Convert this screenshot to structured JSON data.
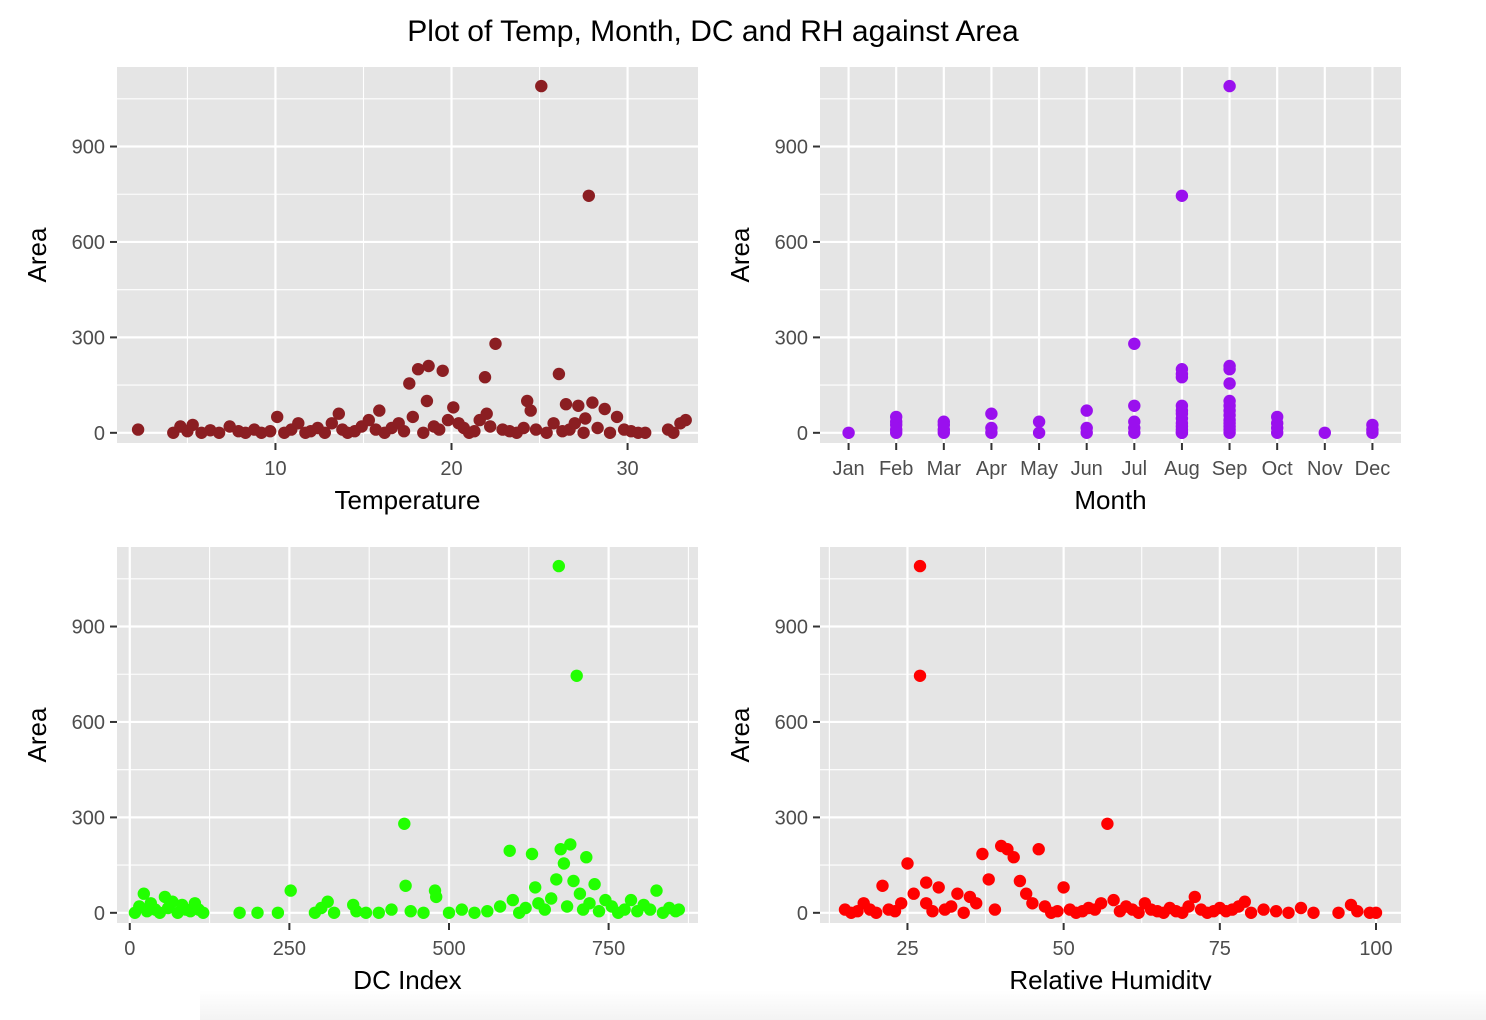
{
  "title": "Plot of Temp, Month, DC and RH against Area",
  "chart_data": [
    {
      "type": "scatter",
      "title": "",
      "xlabel": "Temperature",
      "ylabel": "Area",
      "xlim": [
        1,
        34
      ],
      "ylim": [
        -32,
        1150
      ],
      "x_ticks": [
        10,
        20,
        30
      ],
      "x_tick_labels": [
        "10",
        "20",
        "30"
      ],
      "y_ticks": [
        0,
        300,
        600,
        900
      ],
      "y_tick_labels": [
        "0",
        "300",
        "600",
        "900"
      ],
      "grid": true,
      "color": "#8b1e22",
      "series": [
        {
          "x": [
            2.2,
            4.2,
            4.6,
            5.0,
            5.3,
            5.8,
            6.3,
            6.8,
            7.4,
            7.9,
            8.3,
            8.8,
            9.2,
            9.7,
            10.1,
            10.5,
            10.9,
            11.3,
            11.7,
            12.0,
            12.4,
            12.8,
            13.2,
            13.6,
            13.8,
            14.1,
            14.5,
            14.9,
            15.3,
            15.7,
            15.9,
            16.2,
            16.6,
            17.0,
            17.3,
            17.6,
            17.8,
            18.1,
            18.4,
            18.6,
            18.7,
            19.0,
            19.3,
            19.5,
            19.8,
            20.1,
            20.4,
            20.7,
            21.0,
            21.3,
            21.6,
            21.9,
            22.0,
            22.2,
            22.5,
            22.9,
            23.3,
            23.7,
            24.1,
            24.3,
            24.5,
            24.8,
            25.1,
            25.4,
            25.8,
            26.1,
            26.3,
            26.5,
            26.7,
            27.0,
            27.2,
            27.5,
            27.6,
            27.8,
            28.0,
            28.3,
            28.7,
            29.0,
            29.4,
            29.8,
            30.2,
            30.6,
            31.0,
            32.3,
            32.6,
            33.0,
            33.3
          ],
          "y": [
            10,
            0,
            20,
            5,
            25,
            0,
            8,
            0,
            20,
            5,
            0,
            10,
            0,
            5,
            50,
            0,
            10,
            30,
            0,
            5,
            15,
            0,
            30,
            60,
            10,
            0,
            5,
            20,
            40,
            10,
            70,
            0,
            15,
            30,
            5,
            155,
            50,
            200,
            0,
            100,
            210,
            20,
            10,
            195,
            40,
            80,
            30,
            15,
            0,
            5,
            40,
            175,
            60,
            20,
            280,
            10,
            5,
            0,
            15,
            100,
            70,
            10,
            1090,
            0,
            30,
            185,
            5,
            90,
            10,
            30,
            85,
            0,
            45,
            745,
            95,
            15,
            75,
            0,
            50,
            10,
            5,
            0,
            0,
            10,
            0,
            30,
            40
          ]
        }
      ]
    },
    {
      "type": "scatter",
      "title": "",
      "xlabel": "Month",
      "ylabel": "Area",
      "xlim": [
        0.4,
        12.6
      ],
      "ylim": [
        -32,
        1150
      ],
      "categories": [
        "Jan",
        "Feb",
        "Mar",
        "Apr",
        "May",
        "Jun",
        "Jul",
        "Aug",
        "Sep",
        "Oct",
        "Nov",
        "Dec"
      ],
      "y_ticks": [
        0,
        300,
        600,
        900
      ],
      "y_tick_labels": [
        "0",
        "300",
        "600",
        "900"
      ],
      "grid": true,
      "color": "#9a10ee",
      "series": [
        {
          "x": [
            1,
            2,
            2,
            2,
            2,
            2,
            3,
            3,
            3,
            3,
            4,
            4,
            4,
            5,
            5,
            6,
            6,
            6,
            7,
            7,
            7,
            7,
            7,
            8,
            8,
            8,
            8,
            8,
            8,
            8,
            8,
            8,
            8,
            8,
            8,
            8,
            9,
            9,
            9,
            9,
            9,
            9,
            9,
            9,
            9,
            9,
            9,
            9,
            9,
            10,
            10,
            10,
            10,
            11,
            12,
            12,
            12
          ],
          "y": [
            0,
            0,
            10,
            25,
            35,
            50,
            0,
            10,
            25,
            35,
            0,
            15,
            60,
            0,
            35,
            0,
            15,
            70,
            0,
            15,
            35,
            85,
            280,
            0,
            10,
            20,
            30,
            45,
            60,
            70,
            85,
            175,
            185,
            200,
            745,
            0,
            0,
            10,
            20,
            30,
            40,
            55,
            70,
            85,
            100,
            155,
            200,
            210,
            1090,
            0,
            15,
            30,
            50,
            0,
            0,
            10,
            25
          ]
        }
      ]
    },
    {
      "type": "scatter",
      "title": "",
      "xlabel": "DC Index",
      "ylabel": "Area",
      "xlim": [
        -20,
        890
      ],
      "ylim": [
        -32,
        1150
      ],
      "x_ticks": [
        0,
        250,
        500,
        750
      ],
      "x_tick_labels": [
        "0",
        "250",
        "500",
        "750"
      ],
      "y_ticks": [
        0,
        300,
        600,
        900
      ],
      "y_tick_labels": [
        "0",
        "300",
        "600",
        "900"
      ],
      "grid": true,
      "color": "#22ff00",
      "series": [
        {
          "x": [
            8,
            15,
            22,
            27,
            33,
            40,
            47,
            55,
            60,
            67,
            75,
            82,
            88,
            95,
            102,
            108,
            115,
            172,
            200,
            232,
            252,
            290,
            300,
            310,
            320,
            350,
            355,
            370,
            390,
            410,
            430,
            432,
            440,
            460,
            478,
            480,
            500,
            520,
            540,
            560,
            580,
            595,
            600,
            610,
            620,
            630,
            635,
            640,
            650,
            660,
            668,
            672,
            675,
            680,
            685,
            690,
            695,
            700,
            705,
            710,
            715,
            720,
            728,
            735,
            745,
            755,
            765,
            775,
            785,
            795,
            805,
            815,
            825,
            835,
            845,
            855,
            860
          ],
          "y": [
            0,
            20,
            60,
            5,
            30,
            10,
            0,
            50,
            15,
            35,
            0,
            25,
            10,
            5,
            30,
            10,
            0,
            0,
            0,
            0,
            70,
            0,
            15,
            35,
            0,
            25,
            5,
            0,
            0,
            10,
            280,
            85,
            5,
            0,
            70,
            50,
            0,
            10,
            0,
            5,
            20,
            195,
            40,
            0,
            15,
            185,
            80,
            30,
            10,
            45,
            105,
            1090,
            200,
            155,
            20,
            215,
            100,
            745,
            60,
            10,
            175,
            30,
            90,
            5,
            40,
            20,
            0,
            10,
            40,
            5,
            25,
            10,
            70,
            0,
            15,
            5,
            10
          ]
        }
      ]
    },
    {
      "type": "scatter",
      "title": "",
      "xlabel": "Relative Humidity",
      "ylabel": "Area",
      "xlim": [
        11,
        104
      ],
      "ylim": [
        -32,
        1150
      ],
      "x_ticks": [
        25,
        50,
        75,
        100
      ],
      "x_tick_labels": [
        "25",
        "50",
        "75",
        "100"
      ],
      "y_ticks": [
        0,
        300,
        600,
        900
      ],
      "y_tick_labels": [
        "0",
        "300",
        "600",
        "900"
      ],
      "grid": true,
      "color": "#ff0000",
      "series": [
        {
          "x": [
            15,
            16,
            17,
            18,
            19,
            20,
            21,
            22,
            23,
            24,
            25,
            26,
            27,
            27,
            28,
            28,
            29,
            30,
            31,
            32,
            33,
            34,
            35,
            36,
            37,
            38,
            39,
            40,
            41,
            42,
            43,
            44,
            45,
            46,
            47,
            48,
            49,
            50,
            51,
            52,
            53,
            54,
            55,
            56,
            57,
            58,
            59,
            60,
            61,
            62,
            63,
            64,
            65,
            66,
            67,
            68,
            69,
            70,
            71,
            72,
            73,
            74,
            75,
            76,
            77,
            78,
            79,
            80,
            82,
            84,
            86,
            88,
            90,
            94,
            96,
            97,
            99,
            100
          ],
          "y": [
            10,
            0,
            5,
            30,
            10,
            0,
            85,
            10,
            5,
            30,
            155,
            60,
            1090,
            745,
            95,
            30,
            5,
            80,
            10,
            20,
            60,
            0,
            50,
            30,
            185,
            105,
            10,
            210,
            200,
            175,
            100,
            60,
            30,
            200,
            20,
            0,
            5,
            80,
            10,
            0,
            5,
            15,
            10,
            30,
            280,
            40,
            5,
            20,
            10,
            0,
            30,
            10,
            5,
            0,
            15,
            5,
            0,
            20,
            50,
            10,
            0,
            5,
            15,
            5,
            10,
            20,
            35,
            0,
            10,
            5,
            0,
            15,
            0,
            0,
            25,
            5,
            0,
            0
          ]
        }
      ]
    }
  ]
}
